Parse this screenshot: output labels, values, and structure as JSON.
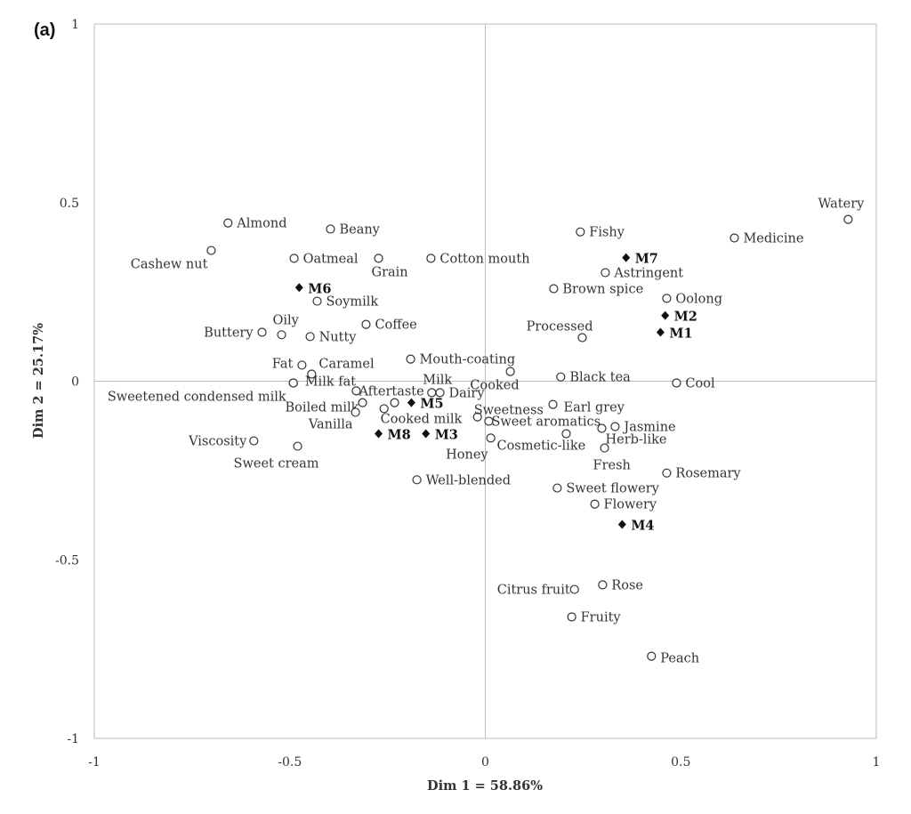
{
  "chart_data": {
    "type": "scatter",
    "panel_label": "(a)",
    "xlabel": "Dim 1 = 58.86%",
    "ylabel": "Dim 2 = 25.17%",
    "xlim": [
      -1,
      1
    ],
    "ylim": [
      -1,
      1
    ],
    "xticks": [
      "-1",
      "-0.5",
      "0",
      "0.5",
      "1"
    ],
    "yticks": [
      "1",
      "0.5",
      "0",
      "-0.5",
      "-1"
    ],
    "xtick_values": [
      -1,
      -0.5,
      0,
      0.5,
      1
    ],
    "ytick_values": [
      1,
      0.5,
      0,
      -0.5,
      -1
    ],
    "grid": false,
    "attributes": [
      {
        "label": "Almond",
        "x": -0.658,
        "y": 0.443
      },
      {
        "label": "Beany",
        "x": -0.396,
        "y": 0.426
      },
      {
        "label": "Cashew nut",
        "x": -0.701,
        "y": 0.366
      },
      {
        "label": "Oatmeal",
        "x": -0.489,
        "y": 0.344
      },
      {
        "label": "Grain",
        "x": -0.273,
        "y": 0.344
      },
      {
        "label": "Cotton mouth",
        "x": -0.139,
        "y": 0.344
      },
      {
        "label": "Soymilk",
        "x": -0.43,
        "y": 0.224
      },
      {
        "label": "Coffee",
        "x": -0.305,
        "y": 0.159
      },
      {
        "label": "Buttery",
        "x": -0.571,
        "y": 0.137
      },
      {
        "label": "Oily",
        "x": -0.521,
        "y": 0.13
      },
      {
        "label": "Nutty",
        "x": -0.448,
        "y": 0.125
      },
      {
        "label": "Mouth-coating",
        "x": -0.191,
        "y": 0.062
      },
      {
        "label": "Fat",
        "x": -0.469,
        "y": 0.045
      },
      {
        "label": "Caramel",
        "x": -0.444,
        "y": 0.02
      },
      {
        "label": "Milk fat",
        "x": -0.491,
        "y": -0.005
      },
      {
        "label": "Sweetened condensed milk",
        "x": -0.491,
        "y": -0.005
      },
      {
        "label": "Aftertaste",
        "x": -0.33,
        "y": -0.027
      },
      {
        "label": "Boiled milk",
        "x": -0.314,
        "y": -0.06
      },
      {
        "label": "Vanilla",
        "x": -0.332,
        "y": -0.087
      },
      {
        "label": "Cooked milk",
        "x": -0.259,
        "y": -0.077
      },
      {
        "label": "",
        "x": -0.232,
        "y": -0.06
      },
      {
        "label": "Milk",
        "x": -0.137,
        "y": -0.032
      },
      {
        "label": "Dairy",
        "x": -0.116,
        "y": -0.032
      },
      {
        "label": "Sweetness",
        "x": -0.02,
        "y": -0.1
      },
      {
        "label": "Sweet aromatics",
        "x": 0.009,
        "y": -0.112
      },
      {
        "label": "Honey",
        "x": 0.014,
        "y": -0.159
      },
      {
        "label": "Well-blended",
        "x": -0.175,
        "y": -0.276
      },
      {
        "label": "Viscosity",
        "x": -0.592,
        "y": -0.167
      },
      {
        "label": "Sweet cream",
        "x": -0.48,
        "y": -0.182
      },
      {
        "label": "Cooked",
        "x": 0.064,
        "y": 0.027
      },
      {
        "label": "Black tea",
        "x": 0.193,
        "y": 0.012
      },
      {
        "label": "Cool",
        "x": 0.489,
        "y": -0.005
      },
      {
        "label": "Earl grey",
        "x": 0.173,
        "y": -0.065
      },
      {
        "label": "Cosmetic-like",
        "x": 0.207,
        "y": -0.147
      },
      {
        "label": "Jasmine",
        "x": 0.332,
        "y": -0.127
      },
      {
        "label": "Herb-like",
        "x": 0.298,
        "y": -0.132
      },
      {
        "label": "Fresh",
        "x": 0.305,
        "y": -0.187
      },
      {
        "label": "Rosemary",
        "x": 0.464,
        "y": -0.257
      },
      {
        "label": "Sweet flowery",
        "x": 0.184,
        "y": -0.299
      },
      {
        "label": "Flowery",
        "x": 0.28,
        "y": -0.344
      },
      {
        "label": "Citrus fruit",
        "x": 0.228,
        "y": -0.583
      },
      {
        "label": "Rose",
        "x": 0.3,
        "y": -0.57
      },
      {
        "label": "Fruity",
        "x": 0.221,
        "y": -0.66
      },
      {
        "label": "Peach",
        "x": 0.425,
        "y": -0.77
      },
      {
        "label": "Fishy",
        "x": 0.243,
        "y": 0.418
      },
      {
        "label": "Astringent",
        "x": 0.307,
        "y": 0.304
      },
      {
        "label": "Brown spice",
        "x": 0.175,
        "y": 0.259
      },
      {
        "label": "Oolong",
        "x": 0.464,
        "y": 0.232
      },
      {
        "label": "Watery",
        "x": 0.928,
        "y": 0.453
      },
      {
        "label": "Medicine",
        "x": 0.637,
        "y": 0.401
      },
      {
        "label": "Processed",
        "x": 0.248,
        "y": 0.122
      }
    ],
    "samples": [
      {
        "label": "M1",
        "x": 0.448,
        "y": 0.137
      },
      {
        "label": "M2",
        "x": 0.46,
        "y": 0.184
      },
      {
        "label": "M3",
        "x": -0.152,
        "y": -0.147
      },
      {
        "label": "M4",
        "x": 0.35,
        "y": -0.401
      },
      {
        "label": "M5",
        "x": -0.189,
        "y": -0.06
      },
      {
        "label": "M6",
        "x": -0.476,
        "y": 0.262
      },
      {
        "label": "M7",
        "x": 0.36,
        "y": 0.346
      },
      {
        "label": "M8",
        "x": -0.273,
        "y": -0.147
      }
    ]
  }
}
